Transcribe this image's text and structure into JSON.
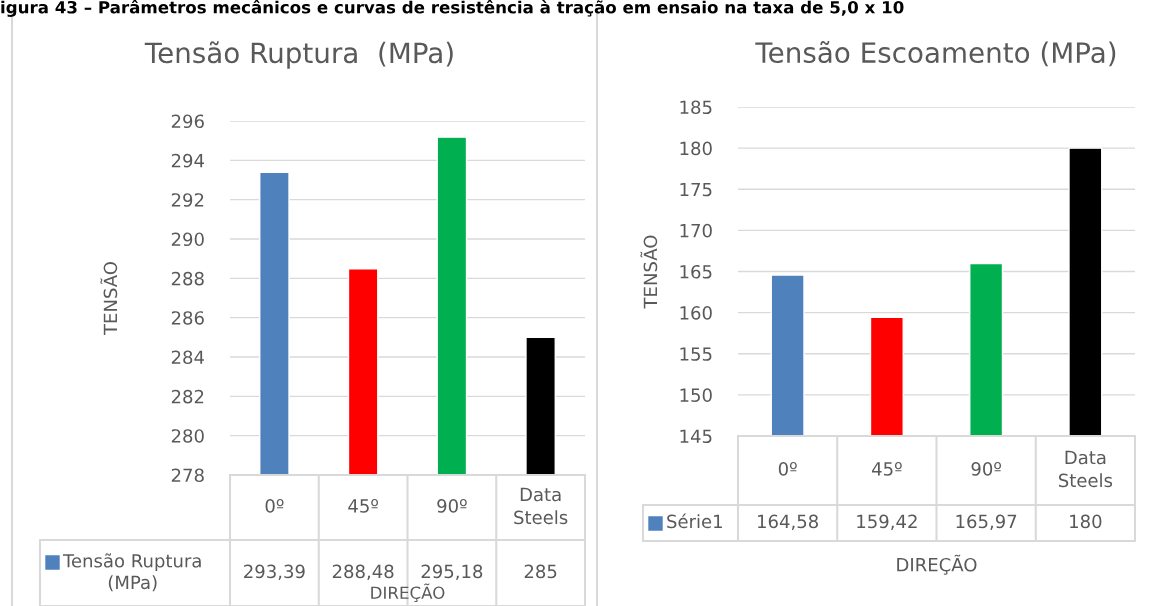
{
  "chart_data": [
    {
      "type": "bar",
      "title": "Tensão Ruptura  (MPa)",
      "xlabel": "DIREÇÃO",
      "ylabel": "TENSÃO",
      "categories": [
        "0º",
        "45º",
        "90º",
        "Data Steels"
      ],
      "series": [
        {
          "name": "Tensão Ruptura (MPa)",
          "color": "#4f81bd",
          "colors": [
            "#4f81bd",
            "#ff0000",
            "#00b050",
            "#000000"
          ],
          "values": [
            293.39,
            288.48,
            295.18,
            285
          ],
          "value_labels": [
            "293,39",
            "288,48",
            "295,18",
            "285"
          ]
        }
      ],
      "ylim": [
        278,
        296
      ],
      "yticks": [
        278,
        280,
        282,
        284,
        286,
        288,
        290,
        292,
        294,
        296
      ],
      "grid": "y",
      "data_labels": true,
      "annotations": [
        "igura 43 – Parâmetros mecânicos e curvas de resistência à tração em ensaio na taxa de 5,0 x 10"
      ]
    },
    {
      "type": "bar",
      "title": "Tensão Escoamento (MPa)",
      "xlabel": "DIREÇÃO",
      "ylabel": "TENSÃO",
      "categories": [
        "0º",
        "45º",
        "90º",
        "Data Steels"
      ],
      "series": [
        {
          "name": "Série1",
          "color": "#4f81bd",
          "colors": [
            "#4f81bd",
            "#ff0000",
            "#00b050",
            "#000000"
          ],
          "values": [
            164.58,
            159.42,
            165.97,
            180
          ],
          "value_labels": [
            "164,58",
            "159,42",
            "165,97",
            "180"
          ]
        }
      ],
      "ylim": [
        145,
        185
      ],
      "yticks": [
        145,
        150,
        155,
        160,
        165,
        170,
        175,
        180,
        185
      ],
      "grid": "y",
      "data_labels": true
    }
  ]
}
